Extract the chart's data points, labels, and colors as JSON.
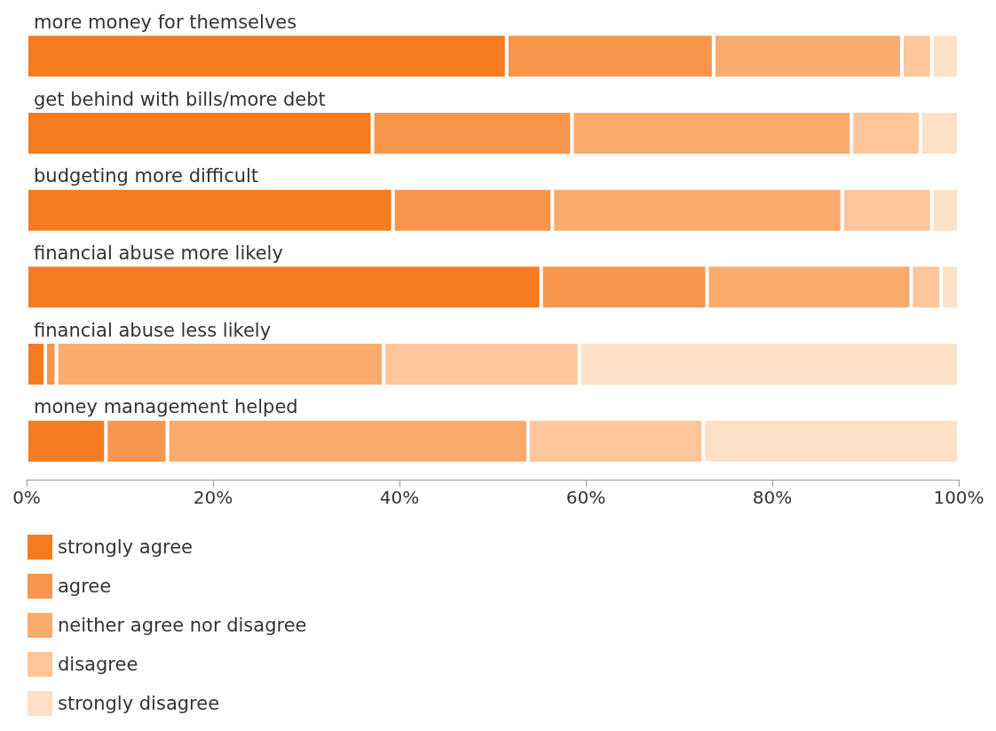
{
  "chart_data": {
    "type": "bar",
    "orientation": "horizontal",
    "stacked": true,
    "categories": [
      "more money for themselves",
      "get behind with bills/more debt",
      "budgeting more difficult",
      "financial abuse more likely",
      "financial abuse less likely",
      "money management helped"
    ],
    "series": [
      {
        "name": "strongly agree",
        "color": "#f47b20",
        "values": [
          51.5,
          37.1,
          39.3,
          55.2,
          2.0,
          8.5
        ]
      },
      {
        "name": "agree",
        "color": "#f7964a",
        "values": [
          22.2,
          21.4,
          17.1,
          17.8,
          1.2,
          6.6
        ]
      },
      {
        "name": "neither agree nor disagree",
        "color": "#f9ab6e",
        "values": [
          20.2,
          30.0,
          31.1,
          21.9,
          35.1,
          38.7
        ]
      },
      {
        "name": "disagree",
        "color": "#fcc59a",
        "values": [
          3.2,
          7.4,
          9.6,
          3.2,
          21.0,
          18.8
        ]
      },
      {
        "name": "strongly disagree",
        "color": "#fde0c5",
        "values": [
          2.9,
          4.1,
          2.9,
          1.9,
          40.7,
          27.4
        ]
      }
    ],
    "xlim": [
      0,
      100
    ],
    "xticks": [
      {
        "value": 0,
        "label": "0%"
      },
      {
        "value": 20,
        "label": "20%"
      },
      {
        "value": 40,
        "label": "40%"
      },
      {
        "value": 60,
        "label": "60%"
      },
      {
        "value": 80,
        "label": "80%"
      },
      {
        "value": 100,
        "label": "100%"
      }
    ],
    "grid": false,
    "legend": "bottom left"
  }
}
